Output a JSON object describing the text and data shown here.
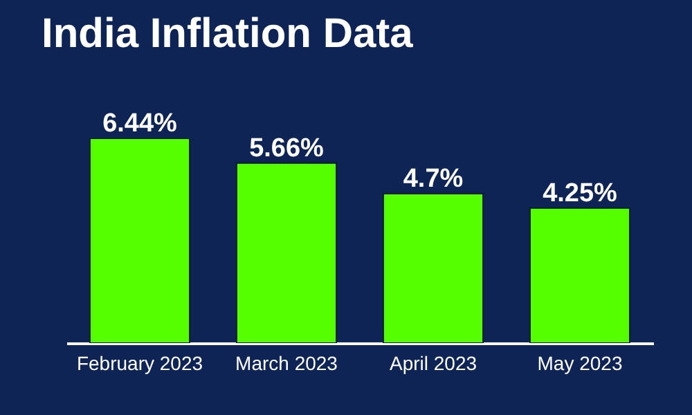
{
  "chart_data": {
    "type": "bar",
    "title": "India Inflation Data",
    "categories": [
      "February 2023",
      "March 2023",
      "April 2023",
      "May 2023"
    ],
    "values": [
      6.44,
      5.66,
      4.7,
      4.25
    ],
    "value_labels": [
      "6.44%",
      "5.66%",
      "4.7%",
      "4.25%"
    ],
    "color": "#55ff00",
    "tick_labels": "x",
    "grid": false
  }
}
